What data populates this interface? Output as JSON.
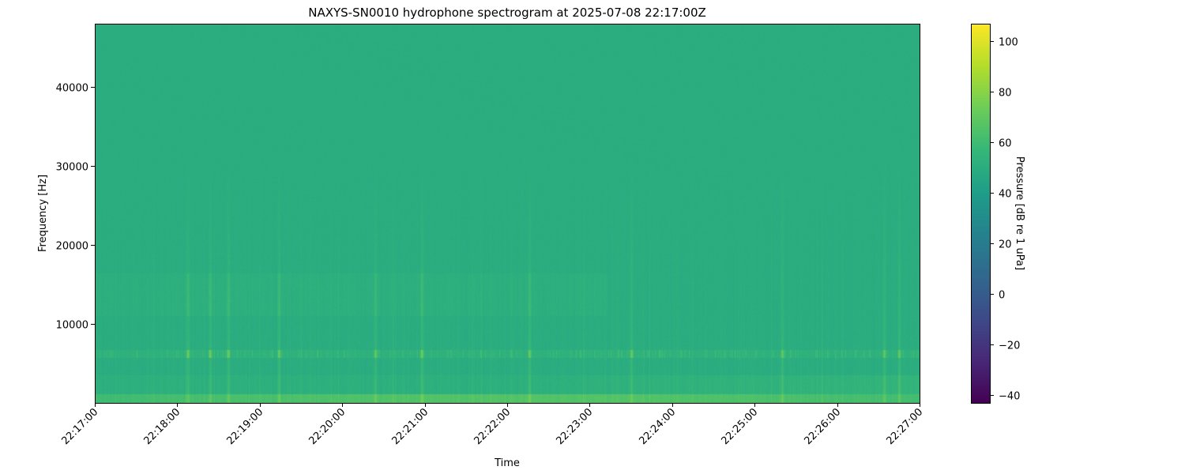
{
  "chart_data": {
    "type": "heatmap",
    "title": "NAXYS-SN0010 hydrophone spectrogram at 2025-07-08 22:17:00Z",
    "xlabel": "Time",
    "ylabel": "Frequency [Hz]",
    "xlim": [
      "22:17:00",
      "22:27:00"
    ],
    "ylim": [
      0,
      48000
    ],
    "x_ticks": [
      "22:17:00",
      "22:18:00",
      "22:19:00",
      "22:20:00",
      "22:21:00",
      "22:22:00",
      "22:23:00",
      "22:24:00",
      "22:25:00",
      "22:26:00",
      "22:27:00"
    ],
    "y_ticks": [
      10000,
      20000,
      30000,
      40000
    ],
    "colorbar": {
      "label": "Pressure [dB re 1 uPa]",
      "colormap": "viridis",
      "range": [
        -43,
        107
      ],
      "ticks": [
        -40,
        -20,
        0,
        20,
        40,
        60,
        80,
        100
      ]
    },
    "background_level_db": 50,
    "tonal_band_hz": [
      5800,
      6800
    ],
    "transient_times": [
      "22:18:08",
      "22:18:24",
      "22:18:37",
      "22:19:14",
      "22:20:24",
      "22:20:58",
      "22:22:16",
      "22:23:30",
      "22:25:20",
      "22:26:34",
      "22:26:45"
    ],
    "grid": false
  }
}
